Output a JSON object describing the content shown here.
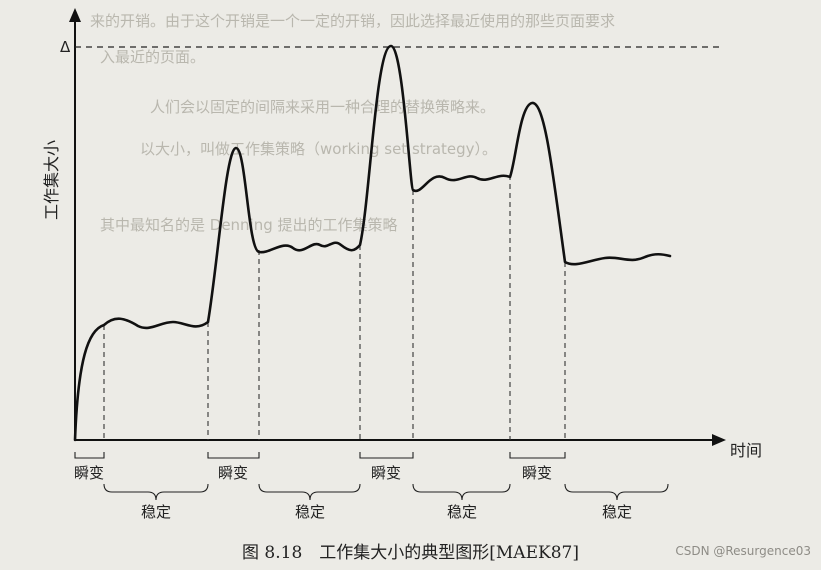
{
  "diagram": {
    "ylabel": "工作集大小",
    "y_marker": "Δ",
    "xlabel": "时间",
    "segments": {
      "transitions": [
        "瞬变",
        "瞬变",
        "瞬变",
        "瞬变"
      ],
      "stables": [
        "稳定",
        "稳定",
        "稳定",
        "稳定"
      ]
    }
  },
  "caption": "图 8.18　工作集大小的典型图形[MAEK87]",
  "watermark": "CSDN @Resurgence03",
  "background_text": [
    "来的开销。由于这个开销是一个一定的开销，因此选择最近使用的那些页面要求",
    "入最近的页面。",
    "人们会以固定的间隔来采用一种合理的替换策略来。",
    "以大小，叫做工作集策略（working set strategy）。",
    "其中最知名的是 Denning 提出的工作集策略"
  ]
}
